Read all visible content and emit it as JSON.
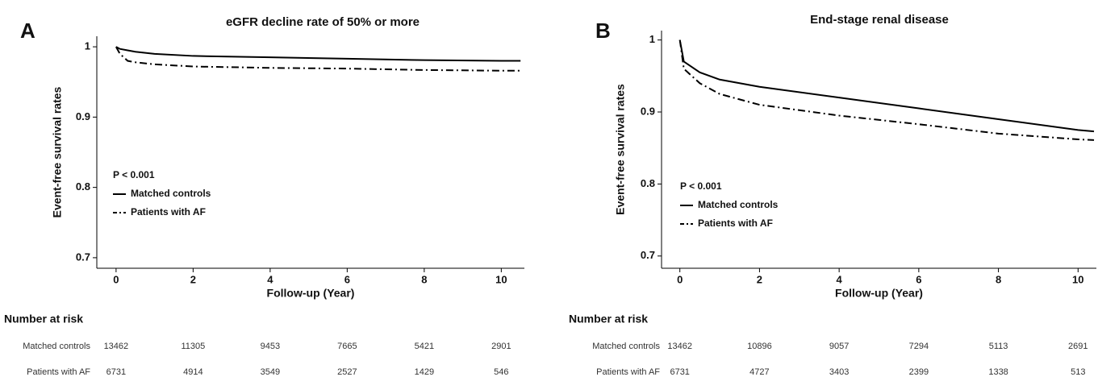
{
  "chart_data": [
    {
      "type": "line",
      "label": "A",
      "title": "eGFR decline rate of 50% or more",
      "xlabel": "Follow-up (Year)",
      "ylabel": "Event-free survival rates",
      "annotation": "P < 0.001",
      "xlim": [
        -0.5,
        10.6
      ],
      "ylim": [
        0.685,
        1.015
      ],
      "xticks": [
        0,
        2,
        4,
        6,
        8,
        10
      ],
      "yticks": [
        0.7,
        0.8,
        0.9,
        1.0
      ],
      "x": [
        0,
        0.1,
        0.3,
        0.5,
        1,
        2,
        4,
        6,
        8,
        10,
        10.5
      ],
      "series": [
        {
          "name": "Matched controls",
          "color": "#000000",
          "linestyle": "solid",
          "values": [
            1.0,
            0.997,
            0.995,
            0.993,
            0.99,
            0.987,
            0.985,
            0.983,
            0.981,
            0.98,
            0.98
          ]
        },
        {
          "name": "Patients with AF",
          "color": "#000000",
          "linestyle": "dashdot",
          "values": [
            1.0,
            0.99,
            0.98,
            0.978,
            0.975,
            0.972,
            0.97,
            0.969,
            0.967,
            0.966,
            0.966
          ]
        }
      ],
      "risk_table": {
        "title": "Number at risk",
        "rows": [
          {
            "name": "Matched controls",
            "values": [
              13462,
              11305,
              9453,
              7665,
              5421,
              2901
            ]
          },
          {
            "name": "Patients with AF",
            "values": [
              6731,
              4914,
              3549,
              2527,
              1429,
              546
            ]
          }
        ]
      }
    },
    {
      "type": "line",
      "label": "B",
      "title": "End-stage renal disease",
      "xlabel": "Follow-up (Year)",
      "ylabel": "Event-free survival rates",
      "annotation": "P < 0.001",
      "xlim": [
        -0.46,
        10.46
      ],
      "ylim": [
        0.683,
        1.013
      ],
      "xticks": [
        0,
        2,
        4,
        6,
        8,
        10
      ],
      "yticks": [
        0.7,
        0.8,
        0.9,
        1.0
      ],
      "x": [
        0,
        0.1,
        0.5,
        1,
        2,
        4,
        6,
        8,
        10,
        10.4
      ],
      "series": [
        {
          "name": "Matched controls",
          "color": "#000000",
          "linestyle": "solid",
          "values": [
            1.0,
            0.97,
            0.955,
            0.945,
            0.935,
            0.92,
            0.905,
            0.89,
            0.875,
            0.873
          ]
        },
        {
          "name": "Patients with AF",
          "color": "#000000",
          "linestyle": "dashdot",
          "values": [
            1.0,
            0.96,
            0.94,
            0.925,
            0.91,
            0.895,
            0.883,
            0.87,
            0.862,
            0.861
          ]
        }
      ],
      "risk_table": {
        "title": "Number at risk",
        "rows": [
          {
            "name": "Matched controls",
            "values": [
              13462,
              10896,
              9057,
              7294,
              5113,
              2691
            ]
          },
          {
            "name": "Patients with AF",
            "values": [
              6731,
              4727,
              3403,
              2399,
              1338,
              513
            ]
          }
        ]
      }
    }
  ]
}
